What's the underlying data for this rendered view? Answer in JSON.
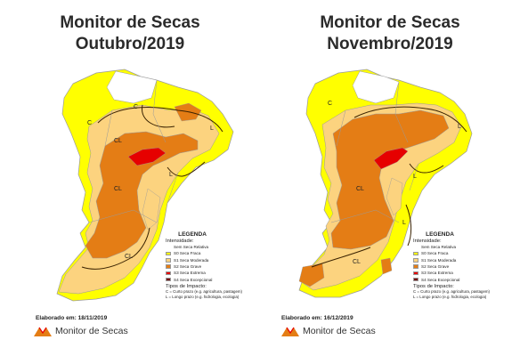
{
  "colors": {
    "none": "#ffffff",
    "d0": "#ffff00",
    "d1": "#fcd37f",
    "d2": "#e47d15",
    "d3": "#e60000",
    "d4": "#720000",
    "border": "#9a9a9a",
    "impact_line": "#3a2200"
  },
  "panels": [
    {
      "title_line1": "Monitor de Secas",
      "title_line2": "Outubro/2019",
      "region_labels": [
        "C",
        "C",
        "L",
        "CL",
        "CL",
        "L",
        "CL"
      ],
      "legend": {
        "heading": "LEGENDA",
        "intensity_label": "Intensidade:",
        "items": [
          {
            "key": "none",
            "label": "Sem Seca Relativa"
          },
          {
            "key": "d0",
            "label": "S0 Seca Fraca"
          },
          {
            "key": "d1",
            "label": "S1 Seca Moderada"
          },
          {
            "key": "d2",
            "label": "S2 Seca Grave"
          },
          {
            "key": "d3",
            "label": "S3 Seca Extrema"
          },
          {
            "key": "d4",
            "label": "S4 Seca Excepcional"
          }
        ],
        "impact_label": "Tipos de Impacto:",
        "impact_short": "C = Curto prazo (e.g. agricultura, pastagem)",
        "impact_long": "L = Longo prazo (e.g. hidrologia, ecologia)"
      },
      "made_on": "Elaborado em: 18/11/2019",
      "brand": "Monitor de Secas"
    },
    {
      "title_line1": "Monitor de Secas",
      "title_line2": "Novembro/2019",
      "region_labels": [
        "C",
        "L",
        "L",
        "CL",
        "L",
        "CL"
      ],
      "legend": {
        "heading": "LEGENDA",
        "intensity_label": "Intensidade:",
        "items": [
          {
            "key": "none",
            "label": "Sem Seca Relativa"
          },
          {
            "key": "d0",
            "label": "S0 Seca Fraca"
          },
          {
            "key": "d1",
            "label": "S1 Seca Moderada"
          },
          {
            "key": "d2",
            "label": "S2 Seca Grave"
          },
          {
            "key": "d3",
            "label": "S3 Seca Extrema"
          },
          {
            "key": "d4",
            "label": "S4 Seca Excepcional"
          }
        ],
        "impact_label": "Tipos de Impacto:",
        "impact_short": "C = Curto prazo (e.g. agricultura, pastagem)",
        "impact_long": "L = Longo prazo (e.g. hidrologia, ecologia)"
      },
      "made_on": "Elaborado em: 16/12/2019",
      "brand": "Monitor de Secas"
    }
  ]
}
